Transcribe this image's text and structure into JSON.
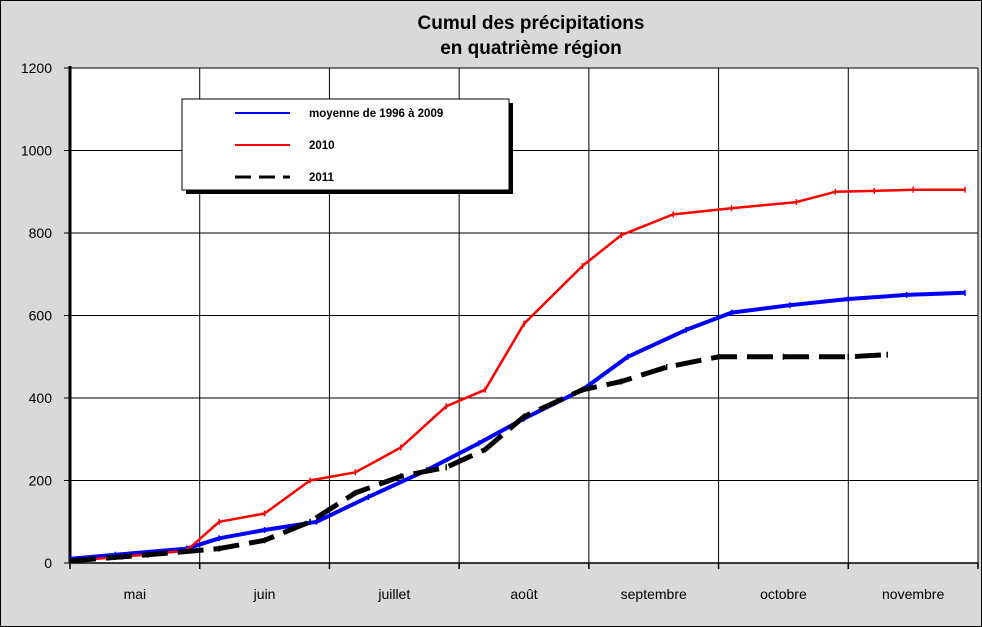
{
  "chart_data": {
    "type": "line",
    "title": [
      "Cumul des précipitations",
      "en quatrième région"
    ],
    "xlabel": "",
    "ylabel": "",
    "ylim": [
      0,
      1200
    ],
    "yticks": [
      0,
      200,
      400,
      600,
      800,
      1000,
      1200
    ],
    "categories": [
      "mai",
      "juin",
      "juillet",
      "août",
      "septembre",
      "octobre",
      "novembre"
    ],
    "grid": true,
    "legend_position": "top-left",
    "series": [
      {
        "name": "moyenne de 1996 à 2009",
        "color": "#0000ff",
        "style": "solid",
        "x": [
          0,
          0.35,
          0.9,
          1.15,
          1.5,
          1.9,
          2.3,
          2.75,
          3.15,
          3.5,
          3.95,
          4.3,
          4.75,
          5.1,
          5.55,
          6.0,
          6.45,
          6.9
        ],
        "y": [
          10,
          20,
          35,
          60,
          80,
          100,
          160,
          225,
          290,
          350,
          420,
          500,
          565,
          607,
          625,
          640,
          650,
          655
        ]
      },
      {
        "name": "2010",
        "color": "#ff0000",
        "style": "solid",
        "x": [
          0,
          0.4,
          0.9,
          1.15,
          1.5,
          1.85,
          2.2,
          2.55,
          2.9,
          3.2,
          3.5,
          3.95,
          4.25,
          4.65,
          5.1,
          5.6,
          5.9,
          6.2,
          6.5,
          6.9
        ],
        "y": [
          5,
          15,
          30,
          100,
          120,
          200,
          220,
          280,
          380,
          420,
          580,
          720,
          795,
          845,
          860,
          875,
          900,
          902,
          905,
          905
        ]
      },
      {
        "name": "2011",
        "color": "#000000",
        "style": "dashed",
        "x": [
          0,
          0.6,
          1.15,
          1.5,
          1.85,
          2.2,
          2.55,
          2.9,
          3.2,
          3.5,
          3.95,
          4.25,
          4.6,
          5.0,
          5.5,
          6.0,
          6.3
        ],
        "y": [
          5,
          20,
          35,
          55,
          100,
          170,
          210,
          232,
          275,
          355,
          420,
          440,
          475,
          500,
          500,
          500,
          505
        ]
      }
    ]
  }
}
